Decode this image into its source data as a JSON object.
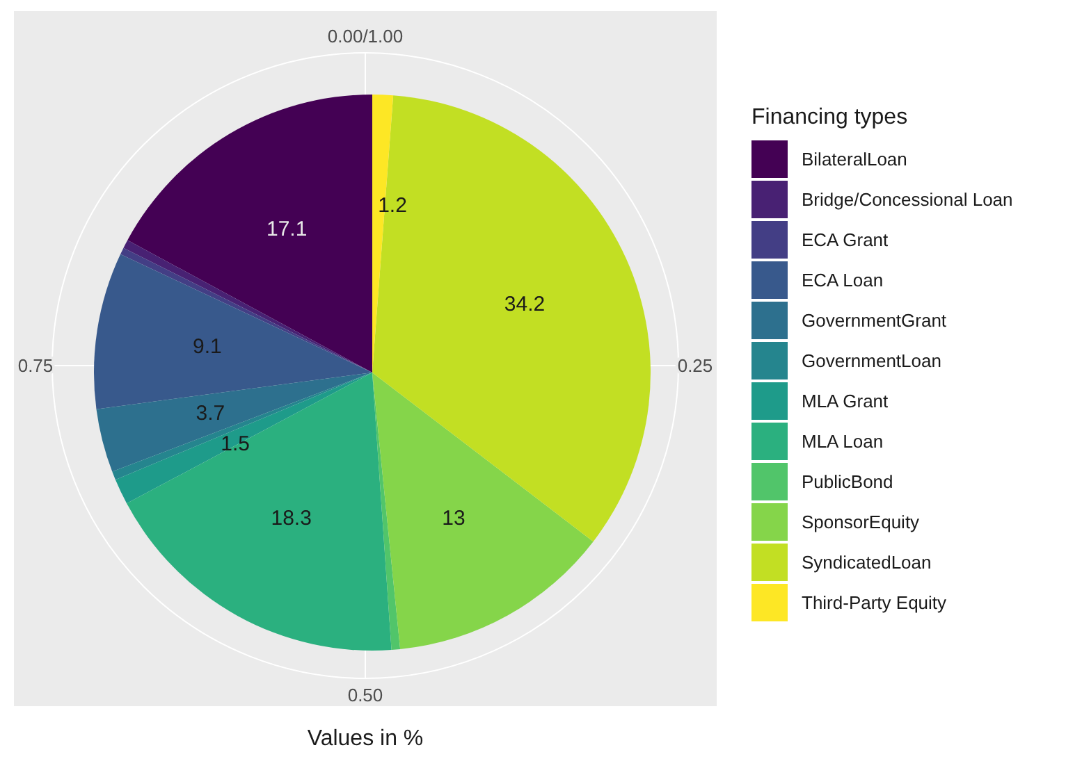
{
  "chart_data": {
    "type": "pie",
    "xlabel": "Values in %",
    "legend_title": "Financing types",
    "legend": "right",
    "categories": [
      "BilateralLoan",
      "Bridge/Concessional Loan",
      "ECA Grant",
      "ECA Loan",
      "GovernmentGrant",
      "GovernmentLoan",
      "MLA Grant",
      "MLA Loan",
      "PublicBond",
      "SponsorEquity",
      "SyndicatedLoan",
      "Third-Party Equity"
    ],
    "values": [
      17.1,
      0.5,
      0.4,
      9.1,
      3.7,
      0.5,
      1.5,
      18.3,
      0.5,
      13,
      34.2,
      1.2
    ],
    "value_labels": [
      "17.1",
      null,
      null,
      "9.1",
      "3.7",
      null,
      "1.5",
      "18.3",
      null,
      "13",
      "34.2",
      "1.2"
    ],
    "colors": [
      "#440154",
      "#482173",
      "#433e85",
      "#38598c",
      "#2d708e",
      "#25858e",
      "#1e9b8a",
      "#2bb07f",
      "#51c56a",
      "#85d54a",
      "#c2df23",
      "#fde725"
    ],
    "annotations": [
      "0.00/1.00",
      "0.25",
      "0.50",
      "0.75"
    ],
    "grid": true
  }
}
